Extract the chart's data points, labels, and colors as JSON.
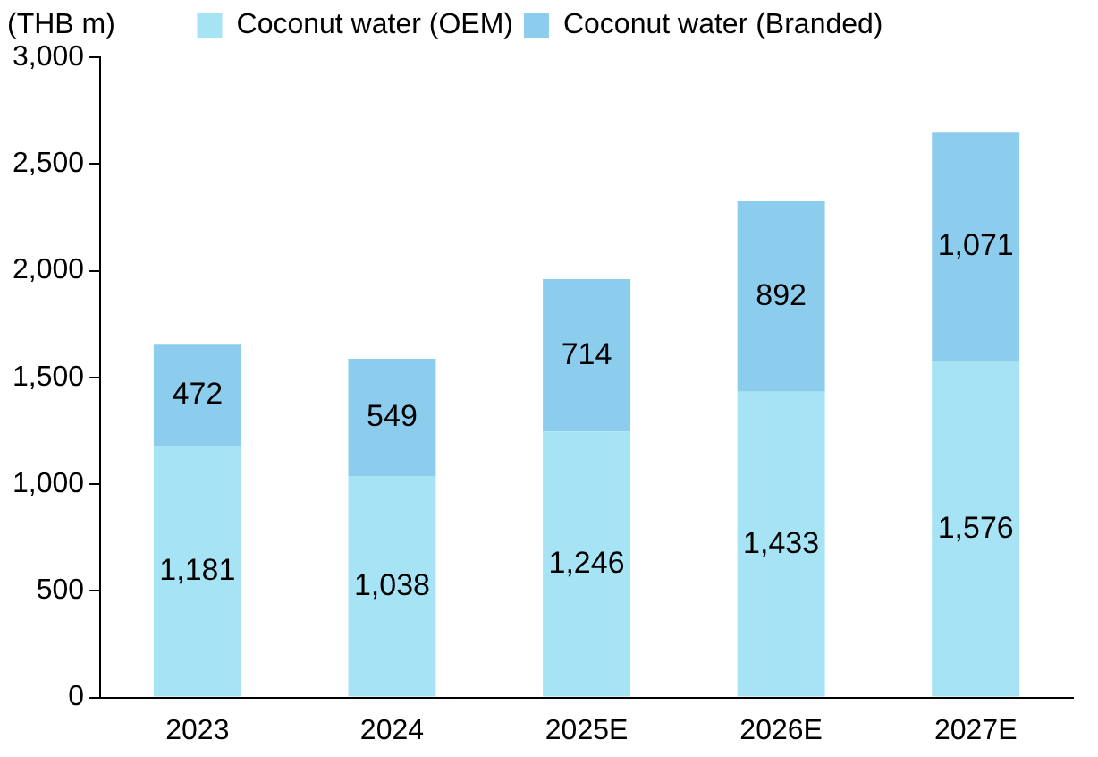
{
  "chart_data": {
    "type": "bar",
    "stacked": true,
    "ylabel": "(THB m)",
    "categories": [
      "2023",
      "2024",
      "2025E",
      "2026E",
      "2027E"
    ],
    "series": [
      {
        "name": "Coconut water (OEM)",
        "color": "#a5e3f5",
        "values": [
          1181,
          1038,
          1246,
          1433,
          1576
        ],
        "value_labels": [
          "1,181",
          "1,038",
          "1,246",
          "1,433",
          "1,576"
        ]
      },
      {
        "name": "Coconut water (Branded)",
        "color": "#8ccdee",
        "values": [
          472,
          549,
          714,
          892,
          1071
        ],
        "value_labels": [
          "472",
          "549",
          "714",
          "892",
          "1,071"
        ]
      }
    ],
    "ylim": [
      0,
      3000
    ],
    "yticks": [
      0,
      500,
      {
        "value": 1000,
        "label": "1,000"
      },
      {
        "value": 1500,
        "label": "1,500"
      },
      {
        "value": 2000,
        "label": "2,000"
      },
      {
        "value": 2500,
        "label": "2,500"
      },
      {
        "value": 3000,
        "label": "3,000"
      }
    ],
    "grid": false,
    "legend": "top"
  }
}
